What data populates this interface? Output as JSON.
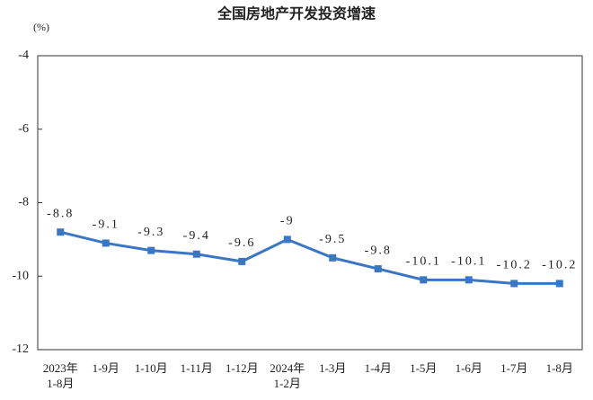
{
  "chart_data": {
    "type": "line",
    "title": "全国房地产开发投资增速",
    "y_label": "(%)",
    "categories": [
      "2023年\n1-8月",
      "1-9月",
      "1-10月",
      "1-11月",
      "1-12月",
      "2024年\n1-2月",
      "1-3月",
      "1-4月",
      "1-5月",
      "1-6月",
      "1-7月",
      "1-8月"
    ],
    "series": [
      {
        "name": "全国房地产开发投资增速",
        "color": "#3a76c4",
        "values": [
          -8.8,
          -9.1,
          -9.3,
          -9.4,
          -9.6,
          -9.0,
          -9.5,
          -9.8,
          -10.1,
          -10.1,
          -10.2,
          -10.2
        ]
      }
    ],
    "ylim": [
      -12,
      -4
    ],
    "yticks": [
      -4,
      -6,
      -8,
      -10,
      -12
    ],
    "grid": false,
    "legend": false
  }
}
